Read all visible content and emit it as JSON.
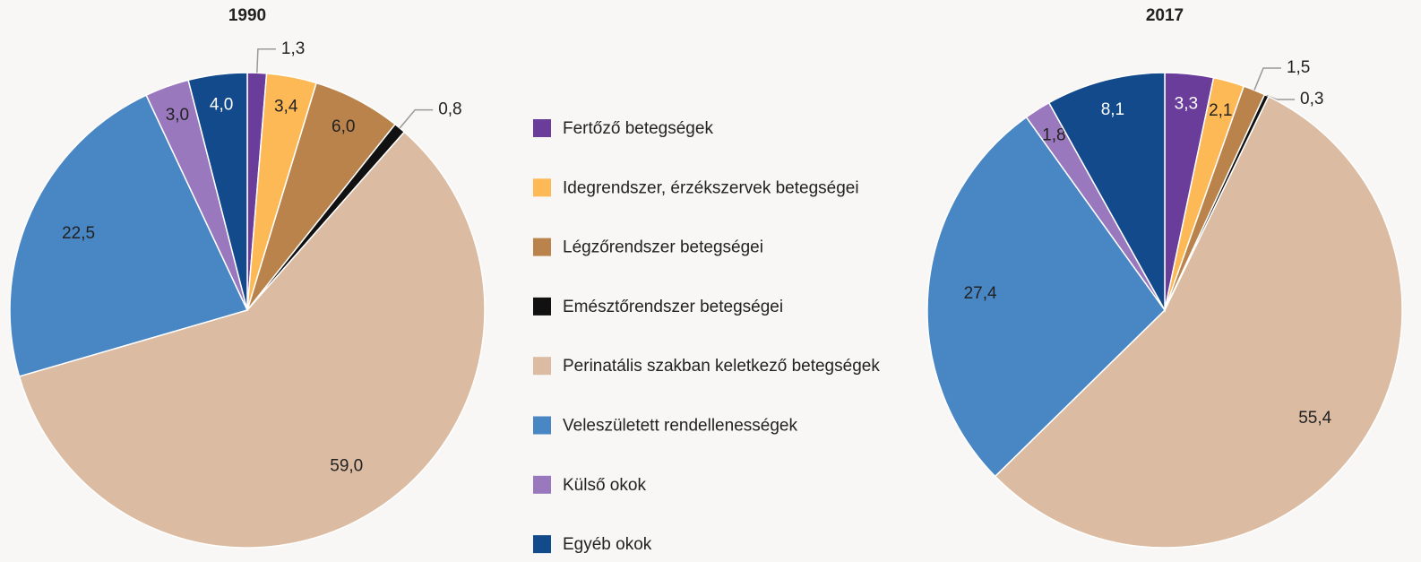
{
  "chart_data": [
    {
      "type": "pie",
      "title": "1990",
      "values": [
        1.3,
        3.4,
        6.0,
        0.8,
        59.0,
        22.5,
        3.0,
        4.0
      ],
      "value_labels": [
        "1,3",
        "3,4",
        "6,0",
        "0,8",
        "59,0",
        "22,5",
        "3,0",
        "4,0"
      ]
    },
    {
      "type": "pie",
      "title": "2017",
      "values": [
        3.3,
        2.1,
        1.5,
        0.3,
        55.4,
        27.4,
        1.8,
        8.1
      ],
      "value_labels": [
        "3,3",
        "2,1",
        "1,5",
        "0,3",
        "55,4",
        "27,4",
        "1,8",
        "8,1"
      ]
    }
  ],
  "legend": {
    "labels": [
      "Fertőző betegségek",
      "Idegrendszer, érzékszervek betegségei",
      "Légzőrendszer betegségei",
      "Emésztőrendszer betegségei",
      "Perinatális szakban keletkező betegségek",
      "Veleszületett rendellenességek",
      "Külső okok",
      "Egyéb okok"
    ],
    "colors": [
      "#6b3d9b",
      "#fdb955",
      "#b9834b",
      "#111111",
      "#dbbca2",
      "#4886c4",
      "#9a78be",
      "#134a8b"
    ]
  }
}
